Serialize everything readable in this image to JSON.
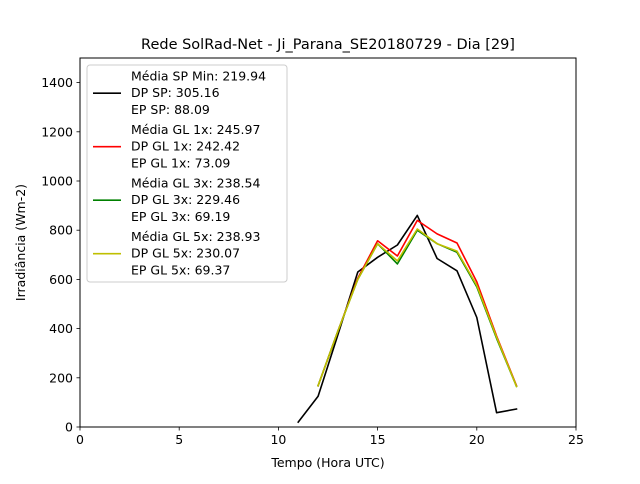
{
  "chart_data": {
    "type": "line",
    "title": "Rede SolRad-Net - Ji_Parana_SE20180729 - Dia [29]",
    "xlabel": "Tempo (Hora UTC)",
    "ylabel": "Irradiância (Wm-2)",
    "xlim": [
      0,
      25
    ],
    "ylim": [
      0,
      1500
    ],
    "xticks": [
      0,
      5,
      10,
      15,
      20,
      25
    ],
    "yticks": [
      0,
      200,
      400,
      600,
      800,
      1000,
      1200,
      1400
    ],
    "grid": false,
    "legend_position": "top-left",
    "series": [
      {
        "name": "black",
        "color": "#000000",
        "legend": [
          "Média SP Min: 219.94",
          "DP SP: 305.16",
          "EP SP: 88.09"
        ],
        "x": [
          11,
          12,
          13,
          14,
          15,
          16,
          17,
          18,
          19,
          20,
          21,
          22
        ],
        "y": [
          20,
          125,
          375,
          630,
          690,
          740,
          860,
          685,
          635,
          445,
          58,
          73
        ]
      },
      {
        "name": "red",
        "color": "#ff0000",
        "legend": [
          "Média GL 1x: 245.97",
          "DP GL 1x: 242.42",
          "EP GL 1x: 73.09"
        ],
        "x": [
          12,
          13,
          14,
          15,
          16,
          17,
          18,
          19,
          20,
          21,
          22
        ],
        "y": [
          168,
          390,
          605,
          757,
          695,
          840,
          785,
          748,
          590,
          370,
          168
        ]
      },
      {
        "name": "green",
        "color": "#008000",
        "legend": [
          "Média GL 3x: 238.54",
          "DP GL 3x: 229.46",
          "EP GL 3x: 69.19"
        ],
        "x": [
          12,
          13,
          14,
          15,
          16,
          17,
          18,
          19,
          20,
          21,
          22
        ],
        "y": [
          168,
          390,
          600,
          745,
          663,
          800,
          745,
          710,
          570,
          360,
          165
        ]
      },
      {
        "name": "yellow",
        "color": "#bfbf00",
        "legend": [
          "Média GL 5x: 238.93",
          "DP GL 5x: 230.07",
          "EP GL 5x: 69.37"
        ],
        "x": [
          12,
          13,
          14,
          15,
          16,
          17,
          18,
          19,
          20,
          21,
          22
        ],
        "y": [
          168,
          390,
          600,
          745,
          675,
          805,
          745,
          715,
          575,
          365,
          165
        ]
      }
    ]
  }
}
